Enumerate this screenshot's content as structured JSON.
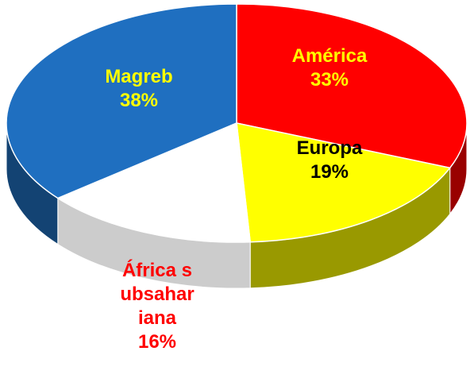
{
  "chart_data": {
    "type": "pie",
    "categories": [
      "Magreb",
      "América",
      "Europa",
      "África subsahariana"
    ],
    "values": [
      38,
      33,
      19,
      16
    ],
    "value_labels": [
      "38%",
      "33%",
      "19%",
      "16%"
    ],
    "colors": [
      "#1f6fc0",
      "#ff0000",
      "#ffff00",
      "#ffffff"
    ]
  }
}
